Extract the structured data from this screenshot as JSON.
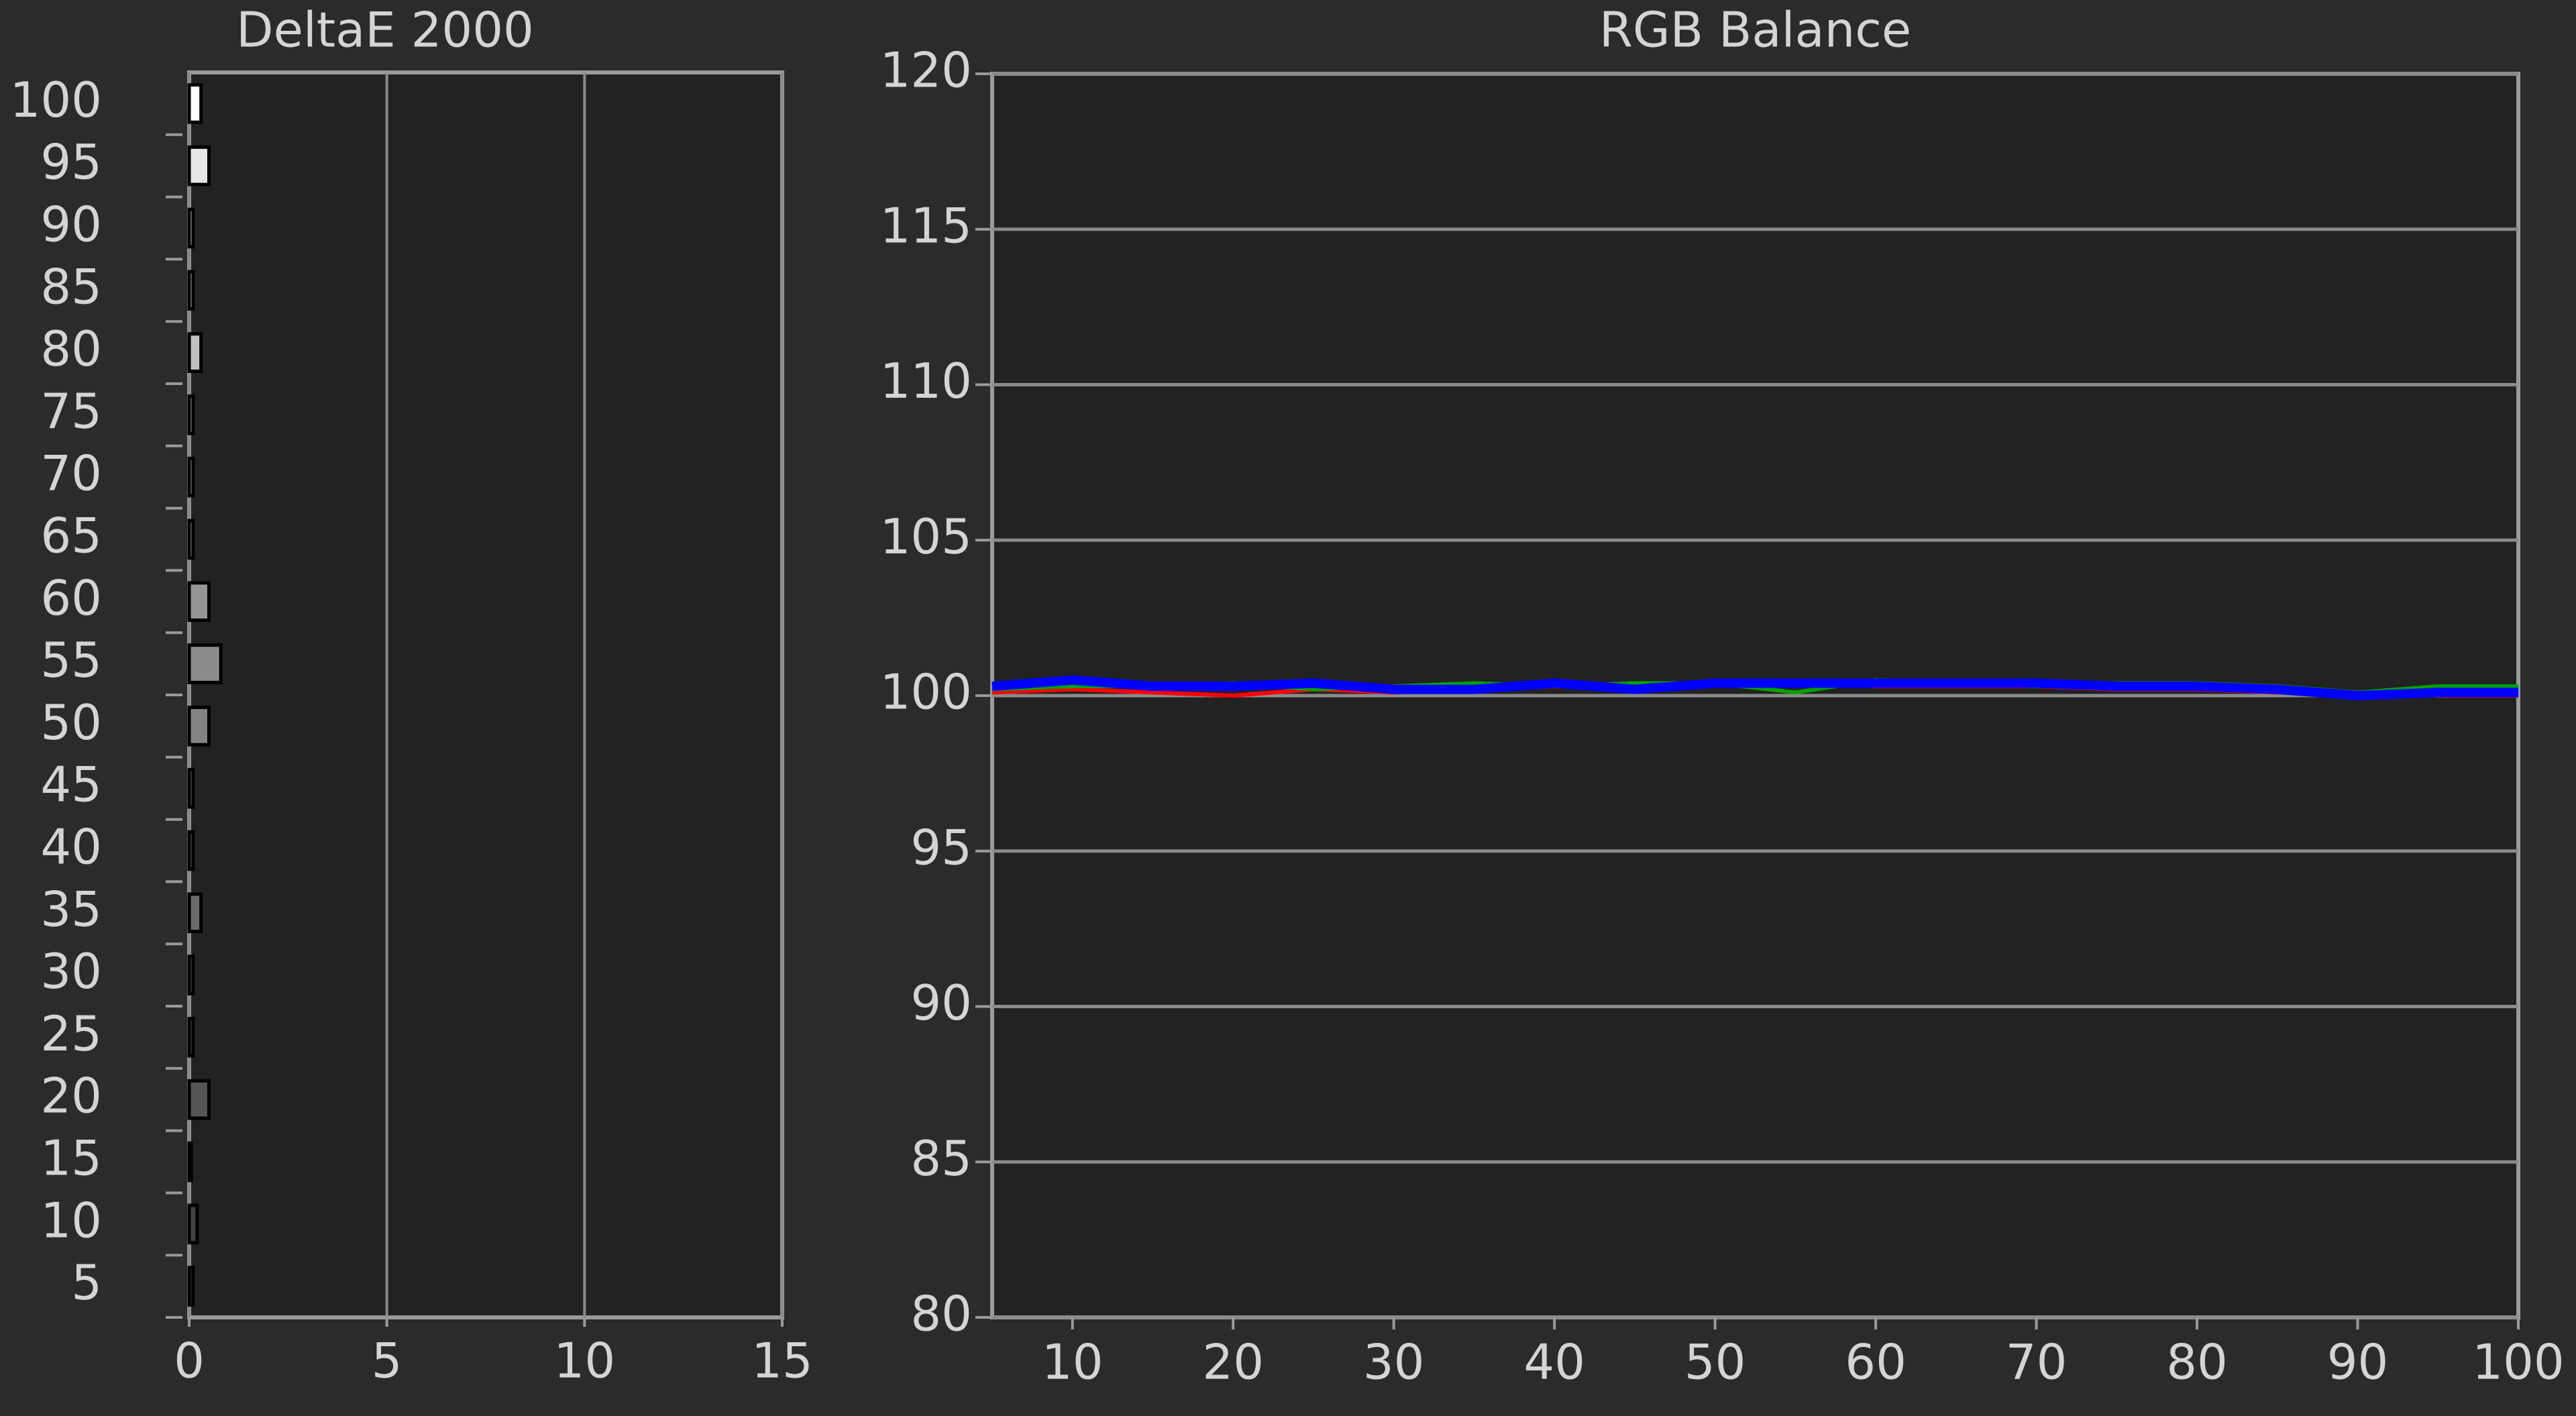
{
  "chart_data": [
    {
      "type": "barh",
      "title": "DeltaE 2000",
      "categories": [
        100,
        95,
        90,
        85,
        80,
        75,
        70,
        65,
        60,
        55,
        50,
        45,
        40,
        35,
        30,
        25,
        20,
        15,
        10,
        5
      ],
      "values": [
        0.3,
        0.5,
        0.1,
        0.1,
        0.3,
        0.1,
        0.1,
        0.1,
        0.5,
        0.8,
        0.5,
        0.1,
        0.1,
        0.3,
        0.1,
        0.1,
        0.5,
        0.05,
        0.2,
        0.1
      ],
      "colors": [
        "#ffffff",
        "#e6e6e6",
        "#d0d0d0",
        "#c8c8c8",
        "#c0c0c0",
        "#b0b0b0",
        "#a6a6a6",
        "#9c9c9c",
        "#959595",
        "#8c8c8c",
        "#838383",
        "#7a7a7a",
        "#727272",
        "#6a6a6a",
        "#626262",
        "#5a5a5a",
        "#555555",
        "#4c4c4c",
        "#444444",
        "#3c3c3c"
      ],
      "xlim": [
        0,
        15
      ],
      "xticks": [
        0,
        5,
        10,
        15
      ],
      "grid": true
    },
    {
      "type": "line",
      "title": "RGB Balance",
      "x": [
        5,
        10,
        15,
        20,
        25,
        30,
        35,
        40,
        45,
        50,
        55,
        60,
        65,
        70,
        75,
        80,
        85,
        90,
        95,
        100
      ],
      "series": [
        {
          "name": "Red",
          "color": "#ff0000",
          "values": [
            100.1,
            100.2,
            100.1,
            100.0,
            100.2,
            100.1,
            100.2,
            100.3,
            100.2,
            100.4,
            100.4,
            100.3,
            100.3,
            100.3,
            100.2,
            100.2,
            100.1,
            100.1,
            100.0,
            100.0
          ]
        },
        {
          "name": "Green",
          "color": "#00a000",
          "values": [
            100.2,
            100.3,
            100.3,
            100.4,
            100.2,
            100.3,
            100.4,
            100.3,
            100.4,
            100.4,
            100.1,
            100.5,
            100.4,
            100.3,
            100.4,
            100.4,
            100.3,
            100.1,
            100.3,
            100.3
          ]
        },
        {
          "name": "Blue",
          "color": "#0000ff",
          "values": [
            100.3,
            100.5,
            100.3,
            100.3,
            100.4,
            100.2,
            100.2,
            100.4,
            100.2,
            100.4,
            100.4,
            100.4,
            100.4,
            100.4,
            100.3,
            100.3,
            100.2,
            100.0,
            100.1,
            100.1
          ]
        }
      ],
      "xlim": [
        5,
        100
      ],
      "xticks": [
        10,
        20,
        30,
        40,
        50,
        60,
        70,
        80,
        90,
        100
      ],
      "ylim": [
        80,
        120
      ],
      "yticks": [
        80,
        85,
        90,
        95,
        100,
        105,
        110,
        115,
        120
      ],
      "grid": true
    }
  ]
}
